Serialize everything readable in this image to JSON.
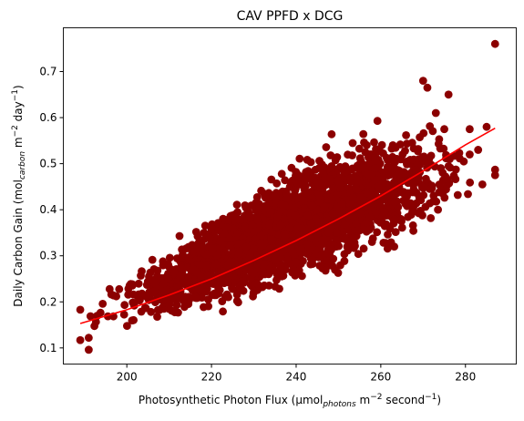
{
  "chart_data": {
    "type": "scatter",
    "title": "CAV PPFD x DCG",
    "xlabel": {
      "prefix": "Photosynthetic Photon Flux (µmol",
      "sub": "photons",
      "mid": " m",
      "sup": "−2",
      "suffix": " second",
      "sup2": "−1",
      "end": ")"
    },
    "ylabel": {
      "prefix": "Daily Carbon Gain (mol",
      "sub": "carbon",
      "mid": " m",
      "sup": "−2",
      "suffix": " day",
      "sup2": "−1",
      "end": ")"
    },
    "xlim": [
      185,
      292
    ],
    "ylim": [
      0.065,
      0.795
    ],
    "xticks": [
      200,
      220,
      240,
      260,
      280
    ],
    "yticks": [
      0.1,
      0.2,
      0.3,
      0.4,
      0.5,
      0.6,
      0.7
    ],
    "grid": false,
    "legend": "none",
    "colors": {
      "points": "#8b0000",
      "fit": "#ff0000"
    },
    "point_cloud": {
      "count": 2600,
      "x_range": [
        189,
        287
      ],
      "band": [
        {
          "x": 190,
          "y_min": 0.1,
          "y_max": 0.2
        },
        {
          "x": 200,
          "y_min": 0.12,
          "y_max": 0.3
        },
        {
          "x": 210,
          "y_min": 0.14,
          "y_max": 0.34
        },
        {
          "x": 220,
          "y_min": 0.15,
          "y_max": 0.42
        },
        {
          "x": 230,
          "y_min": 0.17,
          "y_max": 0.48
        },
        {
          "x": 240,
          "y_min": 0.19,
          "y_max": 0.55
        },
        {
          "x": 250,
          "y_min": 0.22,
          "y_max": 0.6
        },
        {
          "x": 260,
          "y_min": 0.26,
          "y_max": 0.63
        },
        {
          "x": 270,
          "y_min": 0.3,
          "y_max": 0.65
        },
        {
          "x": 280,
          "y_min": 0.38,
          "y_max": 0.6
        },
        {
          "x": 287,
          "y_min": 0.47,
          "y_max": 0.58
        }
      ],
      "notable_points": [
        {
          "x": 287,
          "y": 0.76
        },
        {
          "x": 189,
          "y": 0.183
        },
        {
          "x": 189,
          "y": 0.117
        },
        {
          "x": 191,
          "y": 0.096
        },
        {
          "x": 191,
          "y": 0.122
        },
        {
          "x": 285,
          "y": 0.58
        },
        {
          "x": 287,
          "y": 0.487
        },
        {
          "x": 287,
          "y": 0.475
        },
        {
          "x": 284,
          "y": 0.455
        },
        {
          "x": 283,
          "y": 0.53
        },
        {
          "x": 281,
          "y": 0.575
        },
        {
          "x": 276,
          "y": 0.65
        },
        {
          "x": 271,
          "y": 0.665
        },
        {
          "x": 270,
          "y": 0.68
        },
        {
          "x": 273,
          "y": 0.61
        },
        {
          "x": 281,
          "y": 0.52
        },
        {
          "x": 275,
          "y": 0.575
        }
      ]
    },
    "fit_line": {
      "x": [
        189,
        200,
        210,
        220,
        230,
        240,
        250,
        260,
        270,
        280,
        287
      ],
      "y": [
        0.153,
        0.183,
        0.215,
        0.25,
        0.29,
        0.333,
        0.38,
        0.43,
        0.484,
        0.541,
        0.577
      ]
    }
  }
}
